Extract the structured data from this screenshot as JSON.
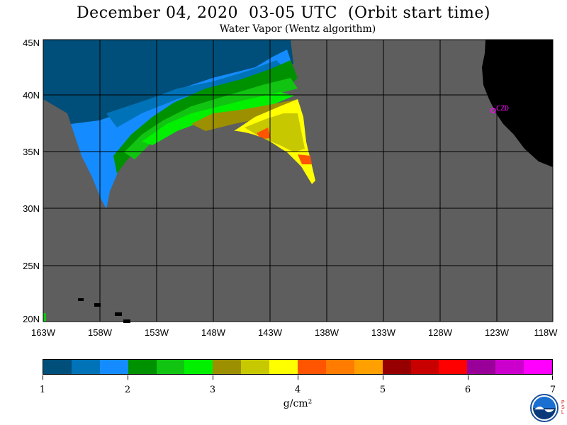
{
  "title": "December 04, 2020  03-05 UTC  (Orbit start time)",
  "subtitle": "Water Vapor (Wentz algorithm)",
  "lat_labels": [
    "45N",
    "40N",
    "35N",
    "30N",
    "25N",
    "20N"
  ],
  "lon_labels": [
    "163W",
    "158W",
    "153W",
    "148W",
    "143W",
    "138W",
    "133W",
    "128W",
    "123W",
    "118W"
  ],
  "station_label": "CZD",
  "colorbar": {
    "colors": [
      "#004f7a",
      "#0073b8",
      "#148cff",
      "#009100",
      "#11c411",
      "#00f000",
      "#9c9000",
      "#c8c800",
      "#ffff00",
      "#ff5400",
      "#ff7c00",
      "#ffa000",
      "#960000",
      "#c80000",
      "#ff0000",
      "#990099",
      "#cc00cc",
      "#ff00ff"
    ],
    "tick_labels": [
      "1",
      "2",
      "3",
      "4",
      "5",
      "6",
      "7"
    ],
    "units": "g/cm²"
  },
  "colors": {
    "ocean_nodata": "#5e5e5e",
    "land": "#000000",
    "station": "#ff00ff"
  },
  "logo_icon": "noaa-logo-icon"
}
